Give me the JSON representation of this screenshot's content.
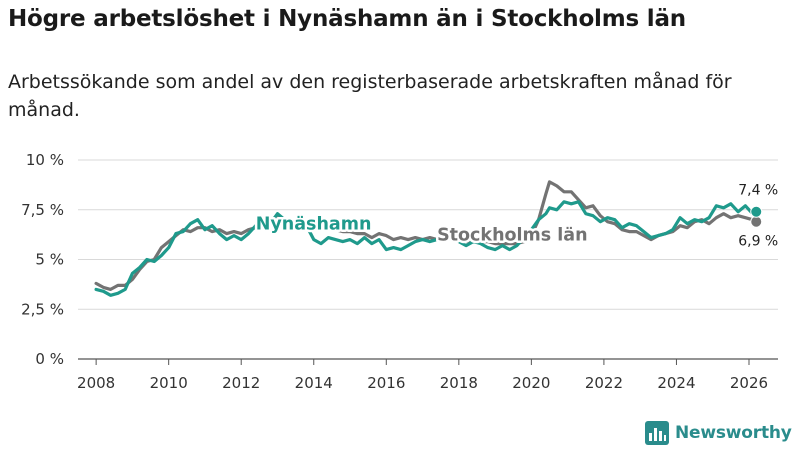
{
  "header": {
    "title": "Högre arbetslöshet i Nynäshamn än i Stockholms län",
    "subtitle": "Arbetssökande som andel av den registerbaserade arbetskraften månad för månad."
  },
  "brand": {
    "name": "Newsworthy",
    "logo_icon": "bar-chart-logo-icon",
    "color": "#2a8c8c"
  },
  "chart_data": {
    "type": "line",
    "title": "Högre arbetslöshet i Nynäshamn än i Stockholms län",
    "xlabel": "",
    "ylabel": "",
    "xlim": [
      2007.5,
      2026.8
    ],
    "ylim": [
      0,
      10
    ],
    "grid": true,
    "x_ticks": [
      2008,
      2010,
      2012,
      2014,
      2016,
      2018,
      2020,
      2022,
      2024,
      2026
    ],
    "x_tick_labels": [
      "2008",
      "2010",
      "2012",
      "2014",
      "2016",
      "2018",
      "2020",
      "2022",
      "2024",
      "2026"
    ],
    "y_ticks": [
      0,
      2.5,
      5,
      7.5,
      10
    ],
    "y_tick_labels": [
      "0 %",
      "2,5 %",
      "5 %",
      "7,5 %",
      "10 %"
    ],
    "series": [
      {
        "name": "Stockholms län",
        "color": "#737373",
        "points": [
          [
            2008.0,
            3.8
          ],
          [
            2008.2,
            3.6
          ],
          [
            2008.4,
            3.5
          ],
          [
            2008.6,
            3.7
          ],
          [
            2008.8,
            3.7
          ],
          [
            2009.0,
            4.0
          ],
          [
            2009.2,
            4.5
          ],
          [
            2009.4,
            4.9
          ],
          [
            2009.6,
            5.0
          ],
          [
            2009.8,
            5.6
          ],
          [
            2010.0,
            5.9
          ],
          [
            2010.2,
            6.2
          ],
          [
            2010.4,
            6.5
          ],
          [
            2010.6,
            6.4
          ],
          [
            2010.8,
            6.6
          ],
          [
            2011.0,
            6.6
          ],
          [
            2011.2,
            6.4
          ],
          [
            2011.4,
            6.5
          ],
          [
            2011.6,
            6.3
          ],
          [
            2011.8,
            6.4
          ],
          [
            2012.0,
            6.3
          ],
          [
            2012.2,
            6.5
          ],
          [
            2012.4,
            6.6
          ],
          [
            2012.6,
            6.6
          ],
          [
            2012.8,
            6.8
          ],
          [
            2013.0,
            7.1
          ],
          [
            2013.2,
            7.0
          ],
          [
            2013.4,
            6.9
          ],
          [
            2013.6,
            6.9
          ],
          [
            2013.8,
            6.9
          ],
          [
            2014.0,
            6.8
          ],
          [
            2014.2,
            6.6
          ],
          [
            2014.4,
            6.6
          ],
          [
            2014.6,
            6.5
          ],
          [
            2014.8,
            6.4
          ],
          [
            2015.0,
            6.4
          ],
          [
            2015.2,
            6.3
          ],
          [
            2015.4,
            6.3
          ],
          [
            2015.6,
            6.1
          ],
          [
            2015.8,
            6.3
          ],
          [
            2016.0,
            6.2
          ],
          [
            2016.2,
            6.0
          ],
          [
            2016.4,
            6.1
          ],
          [
            2016.6,
            6.0
          ],
          [
            2016.8,
            6.1
          ],
          [
            2017.0,
            6.0
          ],
          [
            2017.2,
            6.1
          ],
          [
            2017.4,
            6.0
          ],
          [
            2017.6,
            6.2
          ],
          [
            2017.8,
            6.1
          ],
          [
            2018.0,
            6.0
          ],
          [
            2018.2,
            5.9
          ],
          [
            2018.4,
            5.9
          ],
          [
            2018.6,
            5.9
          ],
          [
            2018.8,
            5.9
          ],
          [
            2019.0,
            5.8
          ],
          [
            2019.2,
            5.8
          ],
          [
            2019.4,
            5.8
          ],
          [
            2019.6,
            5.8
          ],
          [
            2019.8,
            5.9
          ],
          [
            2020.0,
            6.2
          ],
          [
            2020.2,
            7.0
          ],
          [
            2020.4,
            8.3
          ],
          [
            2020.5,
            8.9
          ],
          [
            2020.7,
            8.7
          ],
          [
            2020.9,
            8.4
          ],
          [
            2021.1,
            8.4
          ],
          [
            2021.3,
            8.0
          ],
          [
            2021.5,
            7.6
          ],
          [
            2021.7,
            7.7
          ],
          [
            2021.9,
            7.2
          ],
          [
            2022.1,
            6.9
          ],
          [
            2022.3,
            6.8
          ],
          [
            2022.5,
            6.5
          ],
          [
            2022.7,
            6.4
          ],
          [
            2022.9,
            6.4
          ],
          [
            2023.1,
            6.2
          ],
          [
            2023.3,
            6.0
          ],
          [
            2023.5,
            6.2
          ],
          [
            2023.7,
            6.3
          ],
          [
            2023.9,
            6.4
          ],
          [
            2024.1,
            6.7
          ],
          [
            2024.3,
            6.6
          ],
          [
            2024.5,
            6.9
          ],
          [
            2024.7,
            7.0
          ],
          [
            2024.9,
            6.8
          ],
          [
            2025.1,
            7.1
          ],
          [
            2025.3,
            7.3
          ],
          [
            2025.5,
            7.1
          ],
          [
            2025.7,
            7.2
          ],
          [
            2025.9,
            7.1
          ],
          [
            2026.1,
            7.0
          ],
          [
            2026.2,
            6.9
          ]
        ],
        "end_label": "6,9 %",
        "inline_label": "Stockholms län"
      },
      {
        "name": "Nynäshamn",
        "color": "#1f9a8c",
        "points": [
          [
            2008.0,
            3.5
          ],
          [
            2008.2,
            3.4
          ],
          [
            2008.4,
            3.2
          ],
          [
            2008.6,
            3.3
          ],
          [
            2008.8,
            3.5
          ],
          [
            2009.0,
            4.3
          ],
          [
            2009.2,
            4.6
          ],
          [
            2009.4,
            5.0
          ],
          [
            2009.6,
            4.9
          ],
          [
            2009.8,
            5.2
          ],
          [
            2010.0,
            5.6
          ],
          [
            2010.2,
            6.3
          ],
          [
            2010.4,
            6.4
          ],
          [
            2010.6,
            6.8
          ],
          [
            2010.8,
            7.0
          ],
          [
            2011.0,
            6.5
          ],
          [
            2011.2,
            6.7
          ],
          [
            2011.4,
            6.3
          ],
          [
            2011.6,
            6.0
          ],
          [
            2011.8,
            6.2
          ],
          [
            2012.0,
            6.0
          ],
          [
            2012.2,
            6.3
          ],
          [
            2012.4,
            6.7
          ],
          [
            2012.6,
            6.8
          ],
          [
            2012.8,
            6.8
          ],
          [
            2013.0,
            7.3
          ],
          [
            2013.2,
            7.0
          ],
          [
            2013.4,
            6.8
          ],
          [
            2013.6,
            6.9
          ],
          [
            2013.8,
            6.7
          ],
          [
            2014.0,
            6.0
          ],
          [
            2014.2,
            5.8
          ],
          [
            2014.4,
            6.1
          ],
          [
            2014.6,
            6.0
          ],
          [
            2014.8,
            5.9
          ],
          [
            2015.0,
            6.0
          ],
          [
            2015.2,
            5.8
          ],
          [
            2015.4,
            6.1
          ],
          [
            2015.6,
            5.8
          ],
          [
            2015.8,
            6.0
          ],
          [
            2016.0,
            5.5
          ],
          [
            2016.2,
            5.6
          ],
          [
            2016.4,
            5.5
          ],
          [
            2016.6,
            5.7
          ],
          [
            2016.8,
            5.9
          ],
          [
            2017.0,
            6.0
          ],
          [
            2017.2,
            5.9
          ],
          [
            2017.4,
            6.0
          ],
          [
            2017.6,
            6.2
          ],
          [
            2017.8,
            6.0
          ],
          [
            2018.0,
            5.9
          ],
          [
            2018.2,
            5.7
          ],
          [
            2018.4,
            5.9
          ],
          [
            2018.6,
            5.8
          ],
          [
            2018.8,
            5.6
          ],
          [
            2019.0,
            5.5
          ],
          [
            2019.2,
            5.7
          ],
          [
            2019.4,
            5.5
          ],
          [
            2019.6,
            5.7
          ],
          [
            2019.8,
            6.1
          ],
          [
            2020.0,
            6.5
          ],
          [
            2020.2,
            7.0
          ],
          [
            2020.4,
            7.3
          ],
          [
            2020.5,
            7.6
          ],
          [
            2020.7,
            7.5
          ],
          [
            2020.9,
            7.9
          ],
          [
            2021.1,
            7.8
          ],
          [
            2021.3,
            7.9
          ],
          [
            2021.5,
            7.3
          ],
          [
            2021.7,
            7.2
          ],
          [
            2021.9,
            6.9
          ],
          [
            2022.1,
            7.1
          ],
          [
            2022.3,
            7.0
          ],
          [
            2022.5,
            6.6
          ],
          [
            2022.7,
            6.8
          ],
          [
            2022.9,
            6.7
          ],
          [
            2023.1,
            6.4
          ],
          [
            2023.3,
            6.1
          ],
          [
            2023.5,
            6.2
          ],
          [
            2023.7,
            6.3
          ],
          [
            2023.9,
            6.5
          ],
          [
            2024.1,
            7.1
          ],
          [
            2024.3,
            6.8
          ],
          [
            2024.5,
            7.0
          ],
          [
            2024.7,
            6.9
          ],
          [
            2024.9,
            7.1
          ],
          [
            2025.1,
            7.7
          ],
          [
            2025.3,
            7.6
          ],
          [
            2025.5,
            7.8
          ],
          [
            2025.7,
            7.4
          ],
          [
            2025.9,
            7.7
          ],
          [
            2026.1,
            7.3
          ],
          [
            2026.2,
            7.4
          ]
        ],
        "end_label": "7,4 %",
        "inline_label": "Nynäshamn"
      }
    ]
  }
}
